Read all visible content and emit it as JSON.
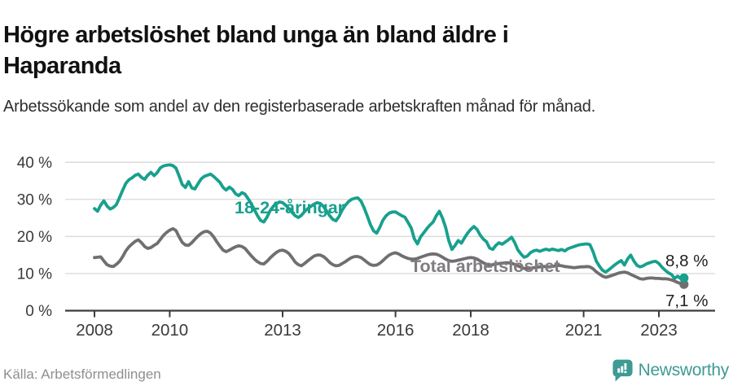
{
  "chart_data": {
    "type": "line",
    "title": "Högre arbetslöshet bland unga än bland äldre i Haparanda",
    "subtitle": "Arbetssökande som andel av den registerbaserade arbetskraften månad för månad.",
    "x_start": "2008-01",
    "x_end": "2023-09",
    "x_interval": "monthly",
    "x_ticks": [
      2008,
      2010,
      2013,
      2016,
      2018,
      2021,
      2023
    ],
    "y_ticks": [
      0,
      10,
      20,
      30,
      40
    ],
    "y_tick_suffix": " %",
    "ylim": [
      0,
      42
    ],
    "grid": "horizontal",
    "legend_position": "inline-labels",
    "series": [
      {
        "name": "Total arbetslöshet",
        "color": "#716e71",
        "label_color": "#7f7b7f",
        "end_label": "7,1 %",
        "end_value": 7.1,
        "values": [
          14.3,
          14.4,
          14.5,
          13.4,
          12.4,
          12.0,
          11.9,
          12.5,
          13.3,
          14.6,
          16.1,
          17.2,
          18.0,
          18.7,
          19.1,
          18.3,
          17.3,
          16.8,
          17.0,
          17.6,
          18.1,
          19.2,
          20.3,
          21.1,
          21.7,
          22.1,
          21.6,
          19.9,
          18.4,
          17.7,
          17.6,
          18.3,
          19.2,
          20.1,
          20.8,
          21.3,
          21.4,
          20.9,
          19.9,
          18.6,
          17.4,
          16.3,
          15.9,
          16.3,
          16.8,
          17.2,
          17.5,
          17.3,
          16.8,
          15.8,
          14.8,
          13.9,
          13.2,
          12.7,
          12.6,
          13.3,
          14.2,
          15.0,
          15.7,
          16.2,
          16.3,
          16.0,
          15.4,
          14.3,
          13.1,
          12.4,
          12.1,
          12.7,
          13.4,
          14.1,
          14.7,
          15.0,
          15.0,
          14.6,
          13.9,
          13.0,
          12.4,
          12.1,
          12.2,
          12.7,
          13.2,
          13.8,
          14.3,
          14.6,
          14.6,
          14.3,
          13.7,
          13.0,
          12.4,
          12.2,
          12.3,
          12.8,
          13.5,
          14.3,
          15.0,
          15.4,
          15.6,
          15.3,
          14.8,
          14.4,
          14.1,
          13.9,
          13.9,
          14.1,
          14.4,
          14.7,
          15.0,
          15.2,
          15.3,
          15.2,
          14.9,
          14.4,
          13.9,
          13.5,
          13.3,
          13.4,
          13.6,
          13.8,
          14.0,
          14.2,
          14.3,
          14.2,
          13.9,
          13.4,
          12.9,
          12.5,
          12.3,
          12.4,
          12.6,
          12.7,
          12.8,
          12.9,
          12.9,
          12.8,
          12.5,
          12.1,
          11.7,
          11.4,
          11.3,
          11.4,
          11.6,
          11.7,
          11.8,
          11.9,
          11.9,
          11.8,
          11.9,
          12.1,
          12.2,
          12.1,
          11.9,
          11.8,
          11.7,
          11.6,
          11.7,
          11.8,
          11.8,
          11.9,
          11.8,
          11.3,
          10.5,
          9.9,
          9.3,
          9.0,
          9.2,
          9.5,
          9.8,
          10.1,
          10.3,
          10.4,
          10.2,
          9.8,
          9.4,
          9.0,
          8.6,
          8.5,
          8.7,
          8.8,
          8.8,
          8.7,
          8.7,
          8.6,
          8.6,
          8.5,
          8.3,
          8.0,
          7.6,
          7.3,
          7.1
        ]
      },
      {
        "name": "18-24-åringar",
        "color": "#18a08e",
        "label_color": "#18a08e",
        "end_label": "8,8 %",
        "end_value": 8.8,
        "values": [
          27.5,
          26.8,
          28.5,
          29.6,
          28.2,
          27.4,
          27.8,
          28.6,
          30.5,
          32.5,
          34.3,
          35.3,
          35.8,
          36.5,
          36.8,
          35.9,
          35.4,
          36.5,
          37.3,
          36.4,
          37.2,
          38.5,
          39.0,
          39.2,
          39.3,
          39.1,
          38.4,
          36.3,
          34.0,
          33.2,
          34.8,
          33.1,
          32.8,
          34.2,
          35.5,
          36.2,
          36.5,
          36.8,
          36.2,
          35.4,
          34.6,
          33.2,
          32.5,
          33.3,
          32.7,
          31.5,
          31.0,
          31.8,
          31.4,
          30.2,
          28.8,
          27.2,
          25.6,
          24.3,
          23.9,
          25.2,
          26.9,
          28.1,
          28.8,
          29.3,
          29.1,
          28.4,
          27.5,
          26.5,
          25.6,
          25.1,
          25.7,
          26.7,
          27.5,
          28.1,
          28.7,
          29.1,
          28.9,
          28.1,
          26.9,
          25.6,
          24.6,
          24.2,
          25.4,
          27.1,
          28.4,
          29.4,
          30.0,
          30.3,
          30.4,
          29.5,
          27.7,
          25.5,
          23.2,
          21.5,
          20.9,
          22.5,
          24.4,
          25.6,
          26.3,
          26.6,
          26.6,
          26.1,
          25.6,
          25.2,
          23.8,
          22.3,
          19.4,
          18.0,
          19.9,
          21.0,
          22.1,
          23.1,
          23.9,
          25.6,
          26.8,
          24.9,
          22.4,
          18.9,
          16.5,
          17.6,
          18.9,
          18.2,
          19.6,
          20.9,
          21.9,
          22.7,
          21.9,
          20.4,
          19.3,
          18.6,
          16.9,
          16.5,
          17.6,
          18.3,
          17.9,
          18.5,
          19.1,
          19.8,
          18.4,
          16.4,
          15.3,
          14.4,
          14.7,
          15.6,
          16.1,
          16.3,
          16.0,
          16.3,
          16.6,
          16.3,
          16.6,
          16.4,
          16.2,
          16.5,
          16.1,
          16.7,
          17.0,
          17.3,
          17.6,
          17.8,
          17.9,
          18.0,
          17.8,
          15.9,
          13.4,
          12.0,
          10.9,
          10.4,
          11.0,
          11.7,
          12.4,
          13.0,
          13.5,
          12.3,
          13.9,
          15.0,
          13.4,
          12.2,
          11.8,
          12.1,
          12.6,
          12.9,
          13.2,
          13.3,
          12.7,
          11.7,
          10.9,
          10.2,
          9.8,
          8.7,
          9.3,
          8.6,
          8.8
        ]
      }
    ]
  },
  "footer": {
    "source": "Källa: Arbetsförmedlingen",
    "brand": "Newsworthy",
    "brand_color": "#3e9a94"
  }
}
